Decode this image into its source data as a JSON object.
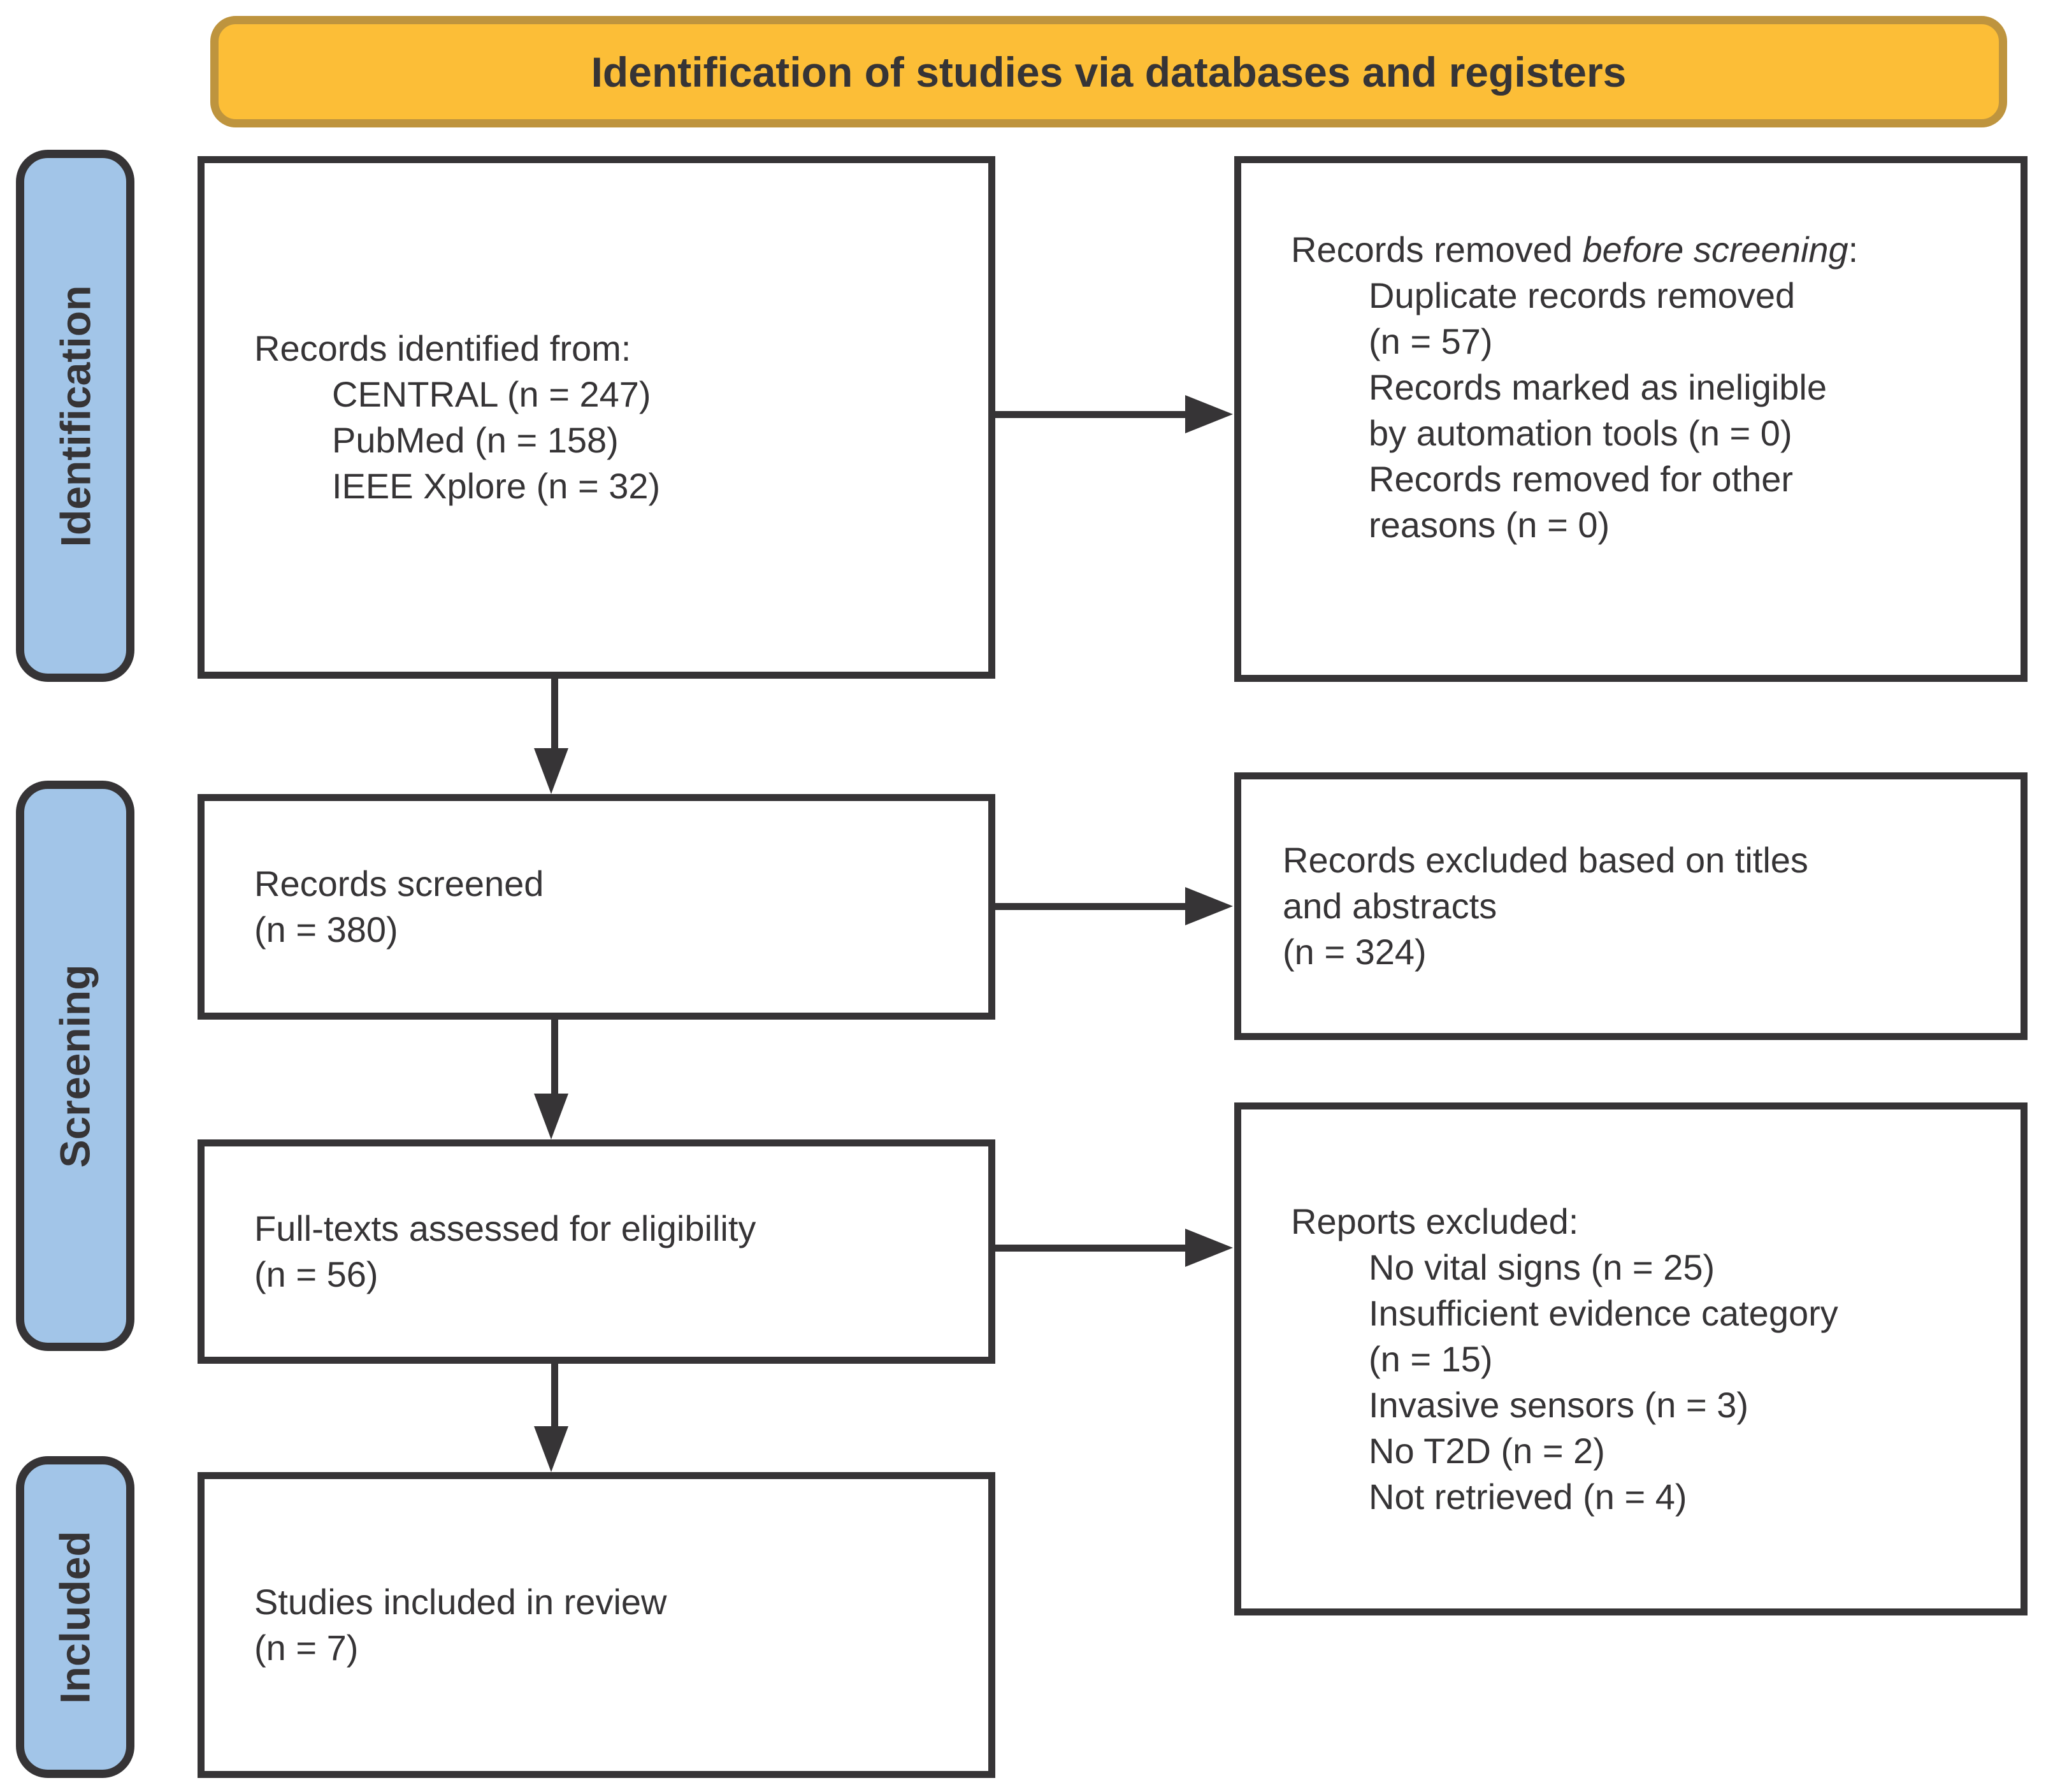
{
  "header": {
    "title": "Identification of studies via databases and registers"
  },
  "sidebar": {
    "labels": [
      {
        "id": "identification",
        "text": "Identification"
      },
      {
        "id": "screening",
        "text": "Screening"
      },
      {
        "id": "included",
        "text": "Included"
      }
    ]
  },
  "flow": {
    "identified": {
      "label": "Records identified from:",
      "items": [
        "CENTRAL (n = 247)",
        "PubMed (n = 158)",
        "IEEE Xplore (n = 32)"
      ]
    },
    "removed": {
      "label_prefix": "Records removed ",
      "label_italic": "before screening",
      "label_suffix": ":",
      "items": [
        [
          "Duplicate records removed",
          "(n = 57)"
        ],
        [
          "Records marked as ineligible",
          "by automation tools (n = 0)"
        ],
        [
          "Records removed for other",
          "reasons (n = 0)"
        ]
      ]
    },
    "screened": {
      "lines": [
        "Records screened",
        "(n = 380)"
      ]
    },
    "excluded_titles": {
      "lines": [
        "Records excluded based on titles",
        "and abstracts",
        "(n = 324)"
      ]
    },
    "fulltext": {
      "lines": [
        "Full-texts assessed for eligibility",
        "(n = 56)"
      ]
    },
    "reports_excluded": {
      "label": "Reports excluded:",
      "items": [
        [
          "No vital signs (n = 25)"
        ],
        [
          "Insufficient evidence category",
          "(n = 15)"
        ],
        [
          "Invasive sensors (n = 3)"
        ],
        [
          "No T2D (n = 2)"
        ],
        [
          "Not retrieved (n = 4)"
        ]
      ]
    },
    "included": {
      "lines": [
        "Studies included in review",
        "(n = 7)"
      ]
    }
  },
  "colors": {
    "dark": "#363436",
    "blue": "#A2C5E8",
    "orange": "#FCBE37",
    "orange-border": "#BE943E",
    "paper": "#FFFFFF"
  }
}
